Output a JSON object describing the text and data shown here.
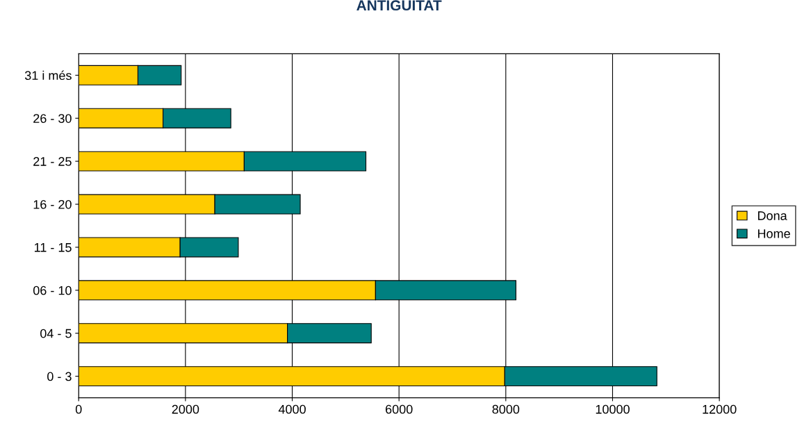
{
  "chart_data": {
    "type": "bar",
    "title": "ANTIGUITAT",
    "orientation": "horizontal",
    "stacked": true,
    "categories": [
      "31 i més",
      "26 - 30",
      "21 - 25",
      "16 - 20",
      "11 - 15",
      "06 - 10",
      "04 - 5",
      "0 - 3"
    ],
    "series": [
      {
        "name": "Dona",
        "color": "#ffcc00",
        "values": [
          1110,
          1580,
          3100,
          2550,
          1900,
          5560,
          3910,
          7980
        ]
      },
      {
        "name": "Home",
        "color": "#008080",
        "values": [
          810,
          1270,
          2280,
          1600,
          1090,
          2630,
          1570,
          2850
        ]
      }
    ],
    "xlim": [
      0,
      12000
    ],
    "xticks": [
      0,
      2000,
      4000,
      6000,
      8000,
      10000,
      12000
    ],
    "grid": "x",
    "legend": "right"
  }
}
